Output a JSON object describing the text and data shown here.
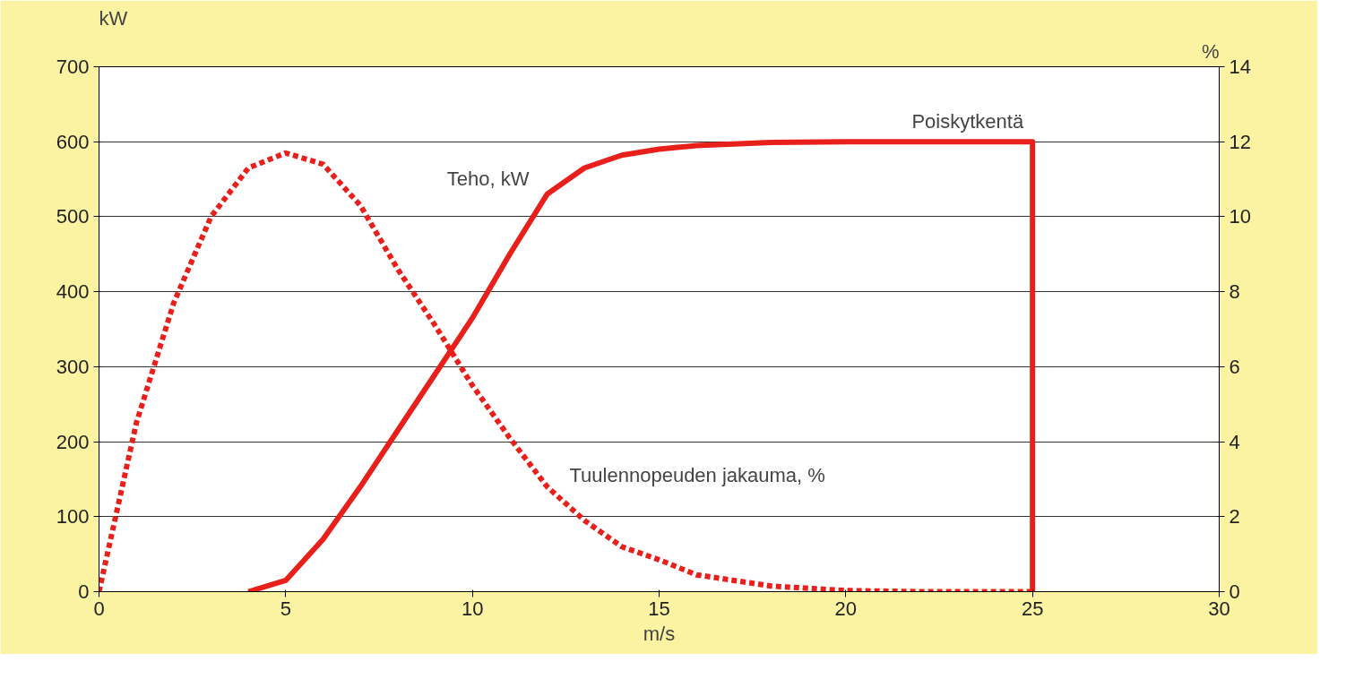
{
  "chart_data": {
    "type": "line",
    "xlabel": "m/s",
    "ylabel": "kW",
    "y2label": "%",
    "xlim": [
      0,
      30
    ],
    "xticks": [
      0,
      5,
      10,
      15,
      20,
      25,
      30
    ],
    "ylim": [
      0,
      700
    ],
    "yticks": [
      0,
      100,
      200,
      300,
      400,
      500,
      600,
      700
    ],
    "y2lim": [
      0,
      14
    ],
    "y2ticks": [
      0,
      2,
      4,
      6,
      8,
      10,
      12,
      14
    ],
    "grid": "y",
    "series": [
      {
        "name": "Teho, kW",
        "color": "#e8201c",
        "line_style": "solid",
        "x": [
          4,
          5,
          6,
          7,
          8,
          9,
          10,
          11,
          12,
          13,
          14,
          15,
          16,
          18,
          20,
          25,
          25
        ],
        "values": [
          0,
          15,
          70,
          140,
          215,
          290,
          365,
          450,
          530,
          565,
          582,
          590,
          595,
          599,
          600,
          600,
          0
        ]
      },
      {
        "name": "Tuulennopeuden jakauma, %",
        "color": "#e8201c",
        "line_style": "dotted",
        "axis": "y2",
        "x": [
          0,
          1,
          2,
          3,
          4,
          5,
          6,
          7,
          8,
          9,
          10,
          11,
          12,
          13,
          14,
          15,
          16,
          17,
          18,
          20,
          22,
          25
        ],
        "values": [
          0,
          4.5,
          7.7,
          10,
          11.3,
          11.7,
          11.4,
          10.3,
          8.6,
          7.1,
          5.5,
          4.1,
          2.8,
          1.9,
          1.2,
          0.85,
          0.45,
          0.3,
          0.15,
          0.03,
          0,
          0
        ]
      }
    ],
    "annotations": [
      {
        "text": "Poiskytkentä",
        "x": 25,
        "y": 600
      }
    ]
  }
}
